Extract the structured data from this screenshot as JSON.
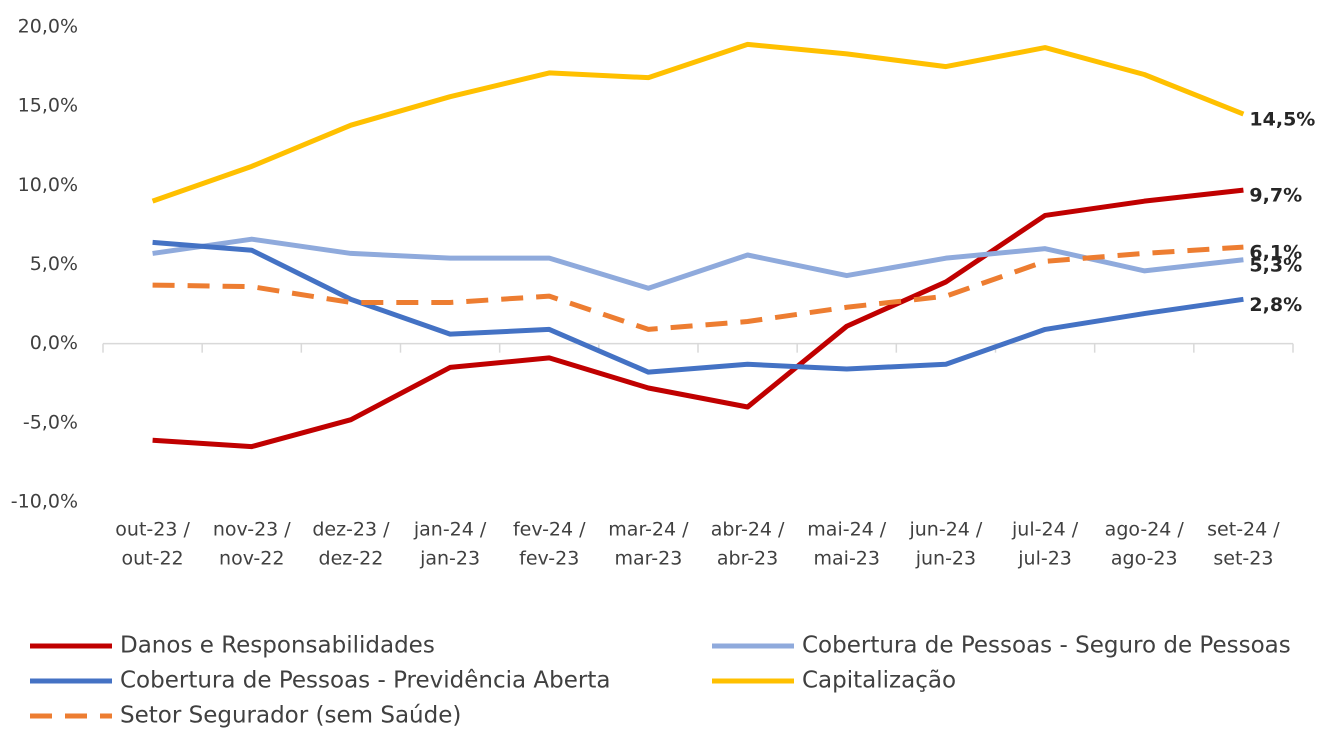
{
  "chart_data": {
    "type": "line",
    "categories": [
      [
        "out-23 /",
        "out-22"
      ],
      [
        "nov-23 /",
        "nov-22"
      ],
      [
        "dez-23 /",
        "dez-22"
      ],
      [
        "jan-24 /",
        "jan-23"
      ],
      [
        "fev-24 /",
        "fev-23"
      ],
      [
        "mar-24 /",
        "mar-23"
      ],
      [
        "abr-24 /",
        "abr-23"
      ],
      [
        "mai-24 /",
        "mai-23"
      ],
      [
        "jun-24 /",
        "jun-23"
      ],
      [
        "jul-24 /",
        "jul-23"
      ],
      [
        "ago-24 /",
        "ago-23"
      ],
      [
        "set-24 /",
        "set-23"
      ]
    ],
    "series": [
      {
        "name": "Danos e Responsabilidades",
        "color": "#C00000",
        "dashed": false,
        "values": [
          -6.1,
          -6.5,
          -4.8,
          -1.5,
          -0.9,
          -2.8,
          -4.0,
          1.1,
          3.9,
          8.1,
          9.0,
          9.7
        ],
        "value_labels": [
          null,
          null,
          null,
          null,
          null,
          null,
          null,
          null,
          null,
          null,
          null,
          "9,7%"
        ]
      },
      {
        "name": "Cobertura de Pessoas - Seguro de Pessoas",
        "color": "#8FAADC",
        "dashed": false,
        "values": [
          5.7,
          6.6,
          5.7,
          5.4,
          5.4,
          3.5,
          5.6,
          4.3,
          5.4,
          6.0,
          4.6,
          5.3
        ],
        "value_labels": [
          null,
          null,
          null,
          null,
          null,
          null,
          null,
          null,
          null,
          null,
          null,
          "5,3%"
        ]
      },
      {
        "name": "Cobertura de Pessoas - Previdência Aberta",
        "color": "#4472C4",
        "dashed": false,
        "values": [
          6.4,
          5.9,
          2.8,
          0.6,
          0.9,
          -1.8,
          -1.3,
          -1.6,
          -1.3,
          0.9,
          1.9,
          2.8
        ],
        "value_labels": [
          null,
          null,
          null,
          null,
          null,
          null,
          null,
          null,
          null,
          null,
          null,
          "2,8%"
        ]
      },
      {
        "name": "Capitalização",
        "color": "#FFC000",
        "dashed": false,
        "values": [
          9.0,
          11.2,
          13.8,
          15.6,
          17.1,
          16.8,
          18.9,
          18.3,
          17.5,
          18.7,
          17.0,
          14.5
        ],
        "value_labels": [
          null,
          null,
          null,
          null,
          null,
          null,
          null,
          null,
          null,
          null,
          null,
          "14,5%"
        ]
      },
      {
        "name": "Setor Segurador (sem Saúde)",
        "color": "#ED7D31",
        "dashed": true,
        "values": [
          3.7,
          3.6,
          2.6,
          2.6,
          3.0,
          0.9,
          1.4,
          2.3,
          3.0,
          5.2,
          5.7,
          6.1
        ],
        "value_labels": [
          null,
          null,
          null,
          null,
          null,
          null,
          null,
          null,
          null,
          null,
          null,
          "6,1%"
        ]
      }
    ],
    "ylim": [
      -10,
      20
    ],
    "yticks": [
      {
        "value": -10,
        "label": "-10,0%"
      },
      {
        "value": -5,
        "label": "-5,0%"
      },
      {
        "value": 0,
        "label": "0,0%"
      },
      {
        "value": 5,
        "label": "5,0%"
      },
      {
        "value": 10,
        "label": "10,0%"
      },
      {
        "value": 15,
        "label": "15,0%"
      },
      {
        "value": 20,
        "label": "20,0%"
      }
    ],
    "grid": false
  }
}
